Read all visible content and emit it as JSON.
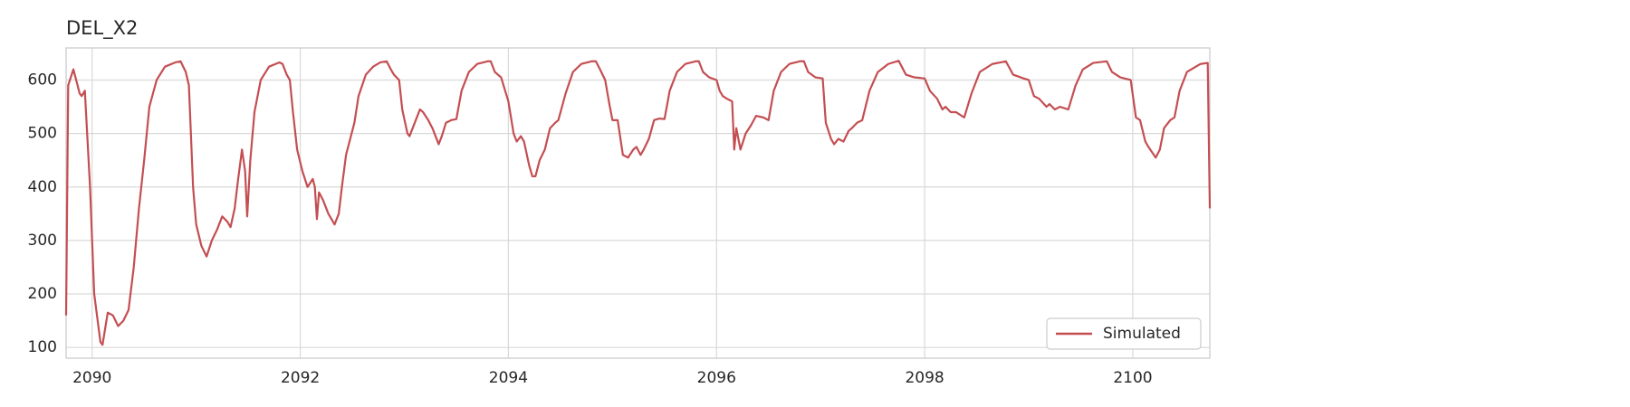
{
  "chart_data": {
    "type": "line",
    "title": "DEL_X2",
    "x": [
      2089.75,
      2089.77,
      2089.82,
      2089.88,
      2089.9,
      2089.93,
      2089.98,
      2090.02,
      2090.08,
      2090.1,
      2090.15,
      2090.2,
      2090.25,
      2090.3,
      2090.35,
      2090.4,
      2090.45,
      2090.5,
      2090.55,
      2090.62,
      2090.7,
      2090.8,
      2090.85,
      2090.9,
      2090.93,
      2090.97,
      2091.0,
      2091.05,
      2091.1,
      2091.15,
      2091.2,
      2091.25,
      2091.3,
      2091.33,
      2091.37,
      2091.4,
      2091.44,
      2091.47,
      2091.49,
      2091.52,
      2091.56,
      2091.62,
      2091.7,
      2091.8,
      2091.83,
      2091.87,
      2091.9,
      2091.93,
      2091.97,
      2092.02,
      2092.07,
      2092.12,
      2092.14,
      2092.16,
      2092.18,
      2092.22,
      2092.27,
      2092.33,
      2092.37,
      2092.4,
      2092.44,
      2092.48,
      2092.52,
      2092.56,
      2092.63,
      2092.7,
      2092.77,
      2092.83,
      2092.87,
      2092.9,
      2092.95,
      2092.98,
      2093.03,
      2093.05,
      2093.1,
      2093.15,
      2093.18,
      2093.23,
      2093.27,
      2093.33,
      2093.36,
      2093.4,
      2093.45,
      2093.5,
      2093.55,
      2093.62,
      2093.7,
      2093.8,
      2093.83,
      2093.87,
      2093.93,
      2094.0,
      2094.05,
      2094.08,
      2094.12,
      2094.15,
      2094.2,
      2094.23,
      2094.26,
      2094.3,
      2094.35,
      2094.4,
      2094.45,
      2094.48,
      2094.55,
      2094.62,
      2094.7,
      2094.8,
      2094.84,
      2094.88,
      2094.93,
      2094.97,
      2095.0,
      2095.05,
      2095.1,
      2095.15,
      2095.2,
      2095.23,
      2095.27,
      2095.3,
      2095.35,
      2095.4,
      2095.45,
      2095.5,
      2095.55,
      2095.62,
      2095.7,
      2095.8,
      2095.83,
      2095.87,
      2095.93,
      2096.0,
      2096.03,
      2096.06,
      2096.1,
      2096.15,
      2096.17,
      2096.19,
      2096.23,
      2096.28,
      2096.33,
      2096.38,
      2096.45,
      2096.5,
      2096.55,
      2096.62,
      2096.7,
      2096.8,
      2096.84,
      2096.88,
      2096.95,
      2097.02,
      2097.05,
      2097.1,
      2097.13,
      2097.17,
      2097.22,
      2097.27,
      2097.3,
      2097.35,
      2097.4,
      2097.47,
      2097.55,
      2097.65,
      2097.75,
      2097.82,
      2097.9,
      2098.0,
      2098.05,
      2098.12,
      2098.17,
      2098.2,
      2098.25,
      2098.3,
      2098.38,
      2098.45,
      2098.53,
      2098.65,
      2098.78,
      2098.85,
      2098.95,
      2099.0,
      2099.05,
      2099.1,
      2099.17,
      2099.2,
      2099.25,
      2099.3,
      2099.38,
      2099.45,
      2099.52,
      2099.62,
      2099.75,
      2099.8,
      2099.88,
      2099.98,
      2100.03,
      2100.07,
      2100.12,
      2100.15,
      2100.22,
      2100.26,
      2100.3,
      2100.36,
      2100.4,
      2100.45,
      2100.52,
      2100.65,
      2100.72,
      2100.74
    ],
    "series": [
      {
        "name": "Simulated",
        "color": "#c44e52",
        "values": [
          160,
          590,
          620,
          575,
          570,
          580,
          400,
          200,
          110,
          105,
          165,
          160,
          140,
          150,
          170,
          250,
          360,
          450,
          550,
          600,
          625,
          633,
          635,
          615,
          590,
          400,
          330,
          290,
          270,
          300,
          320,
          345,
          335,
          325,
          360,
          410,
          470,
          430,
          345,
          450,
          540,
          600,
          625,
          633,
          630,
          610,
          600,
          540,
          470,
          430,
          400,
          415,
          400,
          340,
          390,
          375,
          350,
          330,
          350,
          400,
          460,
          490,
          520,
          570,
          610,
          625,
          633,
          635,
          620,
          610,
          600,
          545,
          500,
          495,
          520,
          545,
          540,
          525,
          510,
          480,
          495,
          520,
          525,
          527,
          580,
          615,
          630,
          635,
          635,
          615,
          605,
          560,
          500,
          485,
          495,
          485,
          440,
          420,
          420,
          450,
          470,
          510,
          520,
          525,
          575,
          615,
          630,
          635,
          635,
          620,
          600,
          555,
          525,
          525,
          460,
          455,
          470,
          475,
          460,
          470,
          490,
          525,
          528,
          527,
          580,
          615,
          630,
          635,
          635,
          615,
          605,
          600,
          580,
          570,
          565,
          560,
          470,
          510,
          470,
          500,
          515,
          533,
          530,
          525,
          580,
          615,
          630,
          635,
          635,
          615,
          605,
          603,
          520,
          490,
          480,
          490,
          485,
          505,
          510,
          520,
          525,
          580,
          615,
          630,
          636,
          610,
          605,
          603,
          580,
          565,
          545,
          550,
          540,
          540,
          530,
          575,
          615,
          630,
          635,
          610,
          603,
          600,
          570,
          565,
          550,
          555,
          545,
          550,
          545,
          590,
          620,
          632,
          635,
          615,
          605,
          600,
          530,
          525,
          485,
          475,
          455,
          470,
          510,
          525,
          530,
          580,
          615,
          630,
          632,
          360
        ]
      }
    ],
    "xlim": [
      2089.75,
      2100.74
    ],
    "xticks": [
      2090,
      2092,
      2094,
      2096,
      2098,
      2100
    ],
    "ylim": [
      80,
      660
    ],
    "yticks": [
      100,
      200,
      300,
      400,
      500,
      600
    ],
    "grid": true,
    "legend": "lower right"
  }
}
